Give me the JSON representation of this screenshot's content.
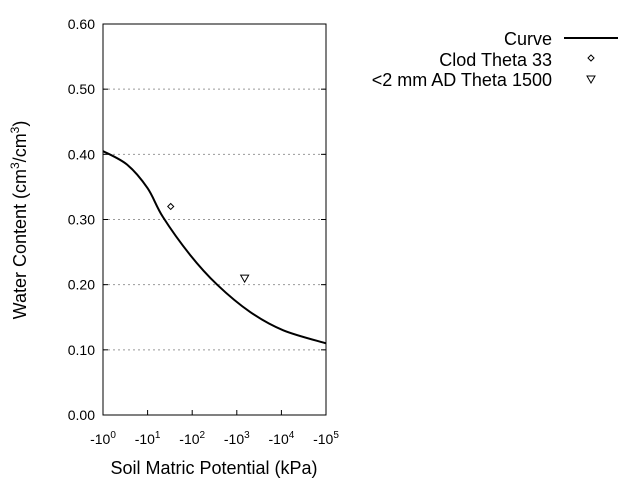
{
  "chart_data": {
    "type": "line",
    "title": "",
    "xlabel": "Soil Matric Potential (kPa)",
    "ylabel": "Water Content (cm3/cm3)",
    "ylabel_parts": {
      "a": "Water Content (cm",
      "sup1": "3",
      "b": "/cm",
      "sup2": "3",
      "c": ")"
    },
    "x_scale": "log (magnitude of negative potential)",
    "xlim": [
      -1,
      -100000
    ],
    "ylim": [
      0,
      0.6
    ],
    "grid": "horizontal dotted",
    "legend_position": "right, outside",
    "x_ticks": [
      {
        "value": -1,
        "base": "-10",
        "exp": "0"
      },
      {
        "value": -10,
        "base": "-10",
        "exp": "1"
      },
      {
        "value": -100,
        "base": "-10",
        "exp": "2"
      },
      {
        "value": -1000,
        "base": "-10",
        "exp": "3"
      },
      {
        "value": -10000,
        "base": "-10",
        "exp": "4"
      },
      {
        "value": -100000,
        "base": "-10",
        "exp": "5"
      }
    ],
    "y_ticks": [
      {
        "value": 0,
        "label": "0.00"
      },
      {
        "value": 0.1,
        "label": "0.10"
      },
      {
        "value": 0.2,
        "label": "0.20"
      },
      {
        "value": 0.3,
        "label": "0.30"
      },
      {
        "value": 0.4,
        "label": "0.40"
      },
      {
        "value": 0.5,
        "label": "0.50"
      },
      {
        "value": 0.6,
        "label": "0.60"
      }
    ],
    "series": [
      {
        "name": "Curve",
        "kind": "line",
        "color": "#000000",
        "x": [
          -1,
          -3.5,
          -10,
          -22,
          -89,
          -363,
          -2000,
          -11000,
          -100000
        ],
        "y": [
          0.405,
          0.384,
          0.348,
          0.304,
          0.246,
          0.2,
          0.158,
          0.13,
          0.11
        ]
      },
      {
        "name": "Clod Theta 33",
        "kind": "marker",
        "marker": "diamond",
        "x": [
          -33
        ],
        "y": [
          0.32
        ]
      },
      {
        "name": "<2 mm AD Theta 1500",
        "kind": "marker",
        "marker": "triangle-down",
        "x": [
          -1500
        ],
        "y": [
          0.21
        ]
      }
    ]
  }
}
